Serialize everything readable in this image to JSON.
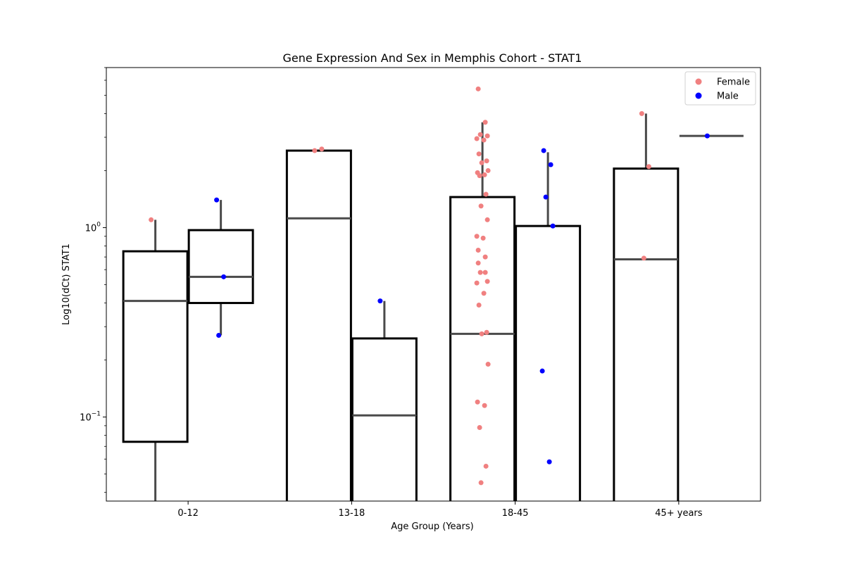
{
  "chart_data": {
    "type": "box",
    "title": "Gene Expression And Sex in Memphis Cohort - STAT1",
    "xlabel": "Age Group (Years)",
    "ylabel": "Log10(dCt) STAT1",
    "yscale": "log",
    "ylim": [
      0.036,
      7.0
    ],
    "yticks": [
      {
        "value": 0.1,
        "base": "10",
        "exp": "−1"
      },
      {
        "value": 1.0,
        "base": "10",
        "exp": "0"
      }
    ],
    "categories": [
      "0-12",
      "13-18",
      "18-45",
      "45+ years"
    ],
    "legend": {
      "position": "top-right",
      "entries": [
        {
          "label": "Female",
          "color": "#f08080"
        },
        {
          "label": "Male",
          "color": "#0000ff"
        }
      ]
    },
    "series": [
      {
        "name": "Female",
        "color": "#f08080",
        "boxes": [
          {
            "category": "0-12",
            "whisker_low": 0.03,
            "q1": 0.074,
            "median": 0.41,
            "q3": 0.75,
            "whisker_high": 1.1
          },
          {
            "category": "13-18",
            "whisker_low": 0.03,
            "q1": 0.03,
            "median": 1.12,
            "q3": 2.55,
            "whisker_high": 2.55
          },
          {
            "category": "18-45",
            "whisker_low": 0.03,
            "q1": 0.03,
            "median": 0.275,
            "q3": 1.45,
            "whisker_high": 3.6
          },
          {
            "category": "45+ years",
            "whisker_low": 0.03,
            "q1": 0.03,
            "median": 0.68,
            "q3": 2.05,
            "whisker_high": 4.0
          }
        ],
        "points": [
          {
            "category": "0-12",
            "values": [
              1.1
            ]
          },
          {
            "category": "13-18",
            "values": [
              2.55,
              2.6
            ]
          },
          {
            "category": "18-45",
            "values": [
              5.4,
              3.6,
              3.1,
              3.05,
              2.95,
              2.9,
              2.45,
              2.25,
              2.2,
              2.0,
              1.95,
              1.9,
              1.88,
              1.5,
              1.3,
              1.1,
              0.9,
              0.88,
              0.76,
              0.7,
              0.65,
              0.58,
              0.58,
              0.52,
              0.51,
              0.45,
              0.39,
              0.28,
              0.275,
              0.19,
              0.12,
              0.115,
              0.088,
              0.055,
              0.045
            ]
          },
          {
            "category": "45+ years",
            "values": [
              4.0,
              2.1,
              0.69
            ]
          }
        ]
      },
      {
        "name": "Male",
        "color": "#0000ff",
        "boxes": [
          {
            "category": "0-12",
            "whisker_low": 0.27,
            "q1": 0.4,
            "median": 0.55,
            "q3": 0.97,
            "whisker_high": 1.4
          },
          {
            "category": "13-18",
            "whisker_low": 0.03,
            "q1": 0.03,
            "median": 0.102,
            "q3": 0.26,
            "whisker_high": 0.41
          },
          {
            "category": "18-45",
            "whisker_low": 0.03,
            "q1": 0.03,
            "median": 0.03,
            "q3": 1.02,
            "whisker_high": 2.5
          },
          {
            "category": "45+ years",
            "whisker_low": 3.05,
            "q1": 3.05,
            "median": 3.05,
            "q3": 3.05,
            "whisker_high": 3.05
          }
        ],
        "points": [
          {
            "category": "0-12",
            "values": [
              1.4,
              0.55,
              0.27
            ]
          },
          {
            "category": "13-18",
            "values": [
              0.41
            ]
          },
          {
            "category": "18-45",
            "values": [
              2.55,
              2.15,
              1.45,
              1.02,
              0.175,
              0.058
            ]
          },
          {
            "category": "45+ years",
            "values": [
              3.05
            ]
          }
        ]
      }
    ]
  }
}
